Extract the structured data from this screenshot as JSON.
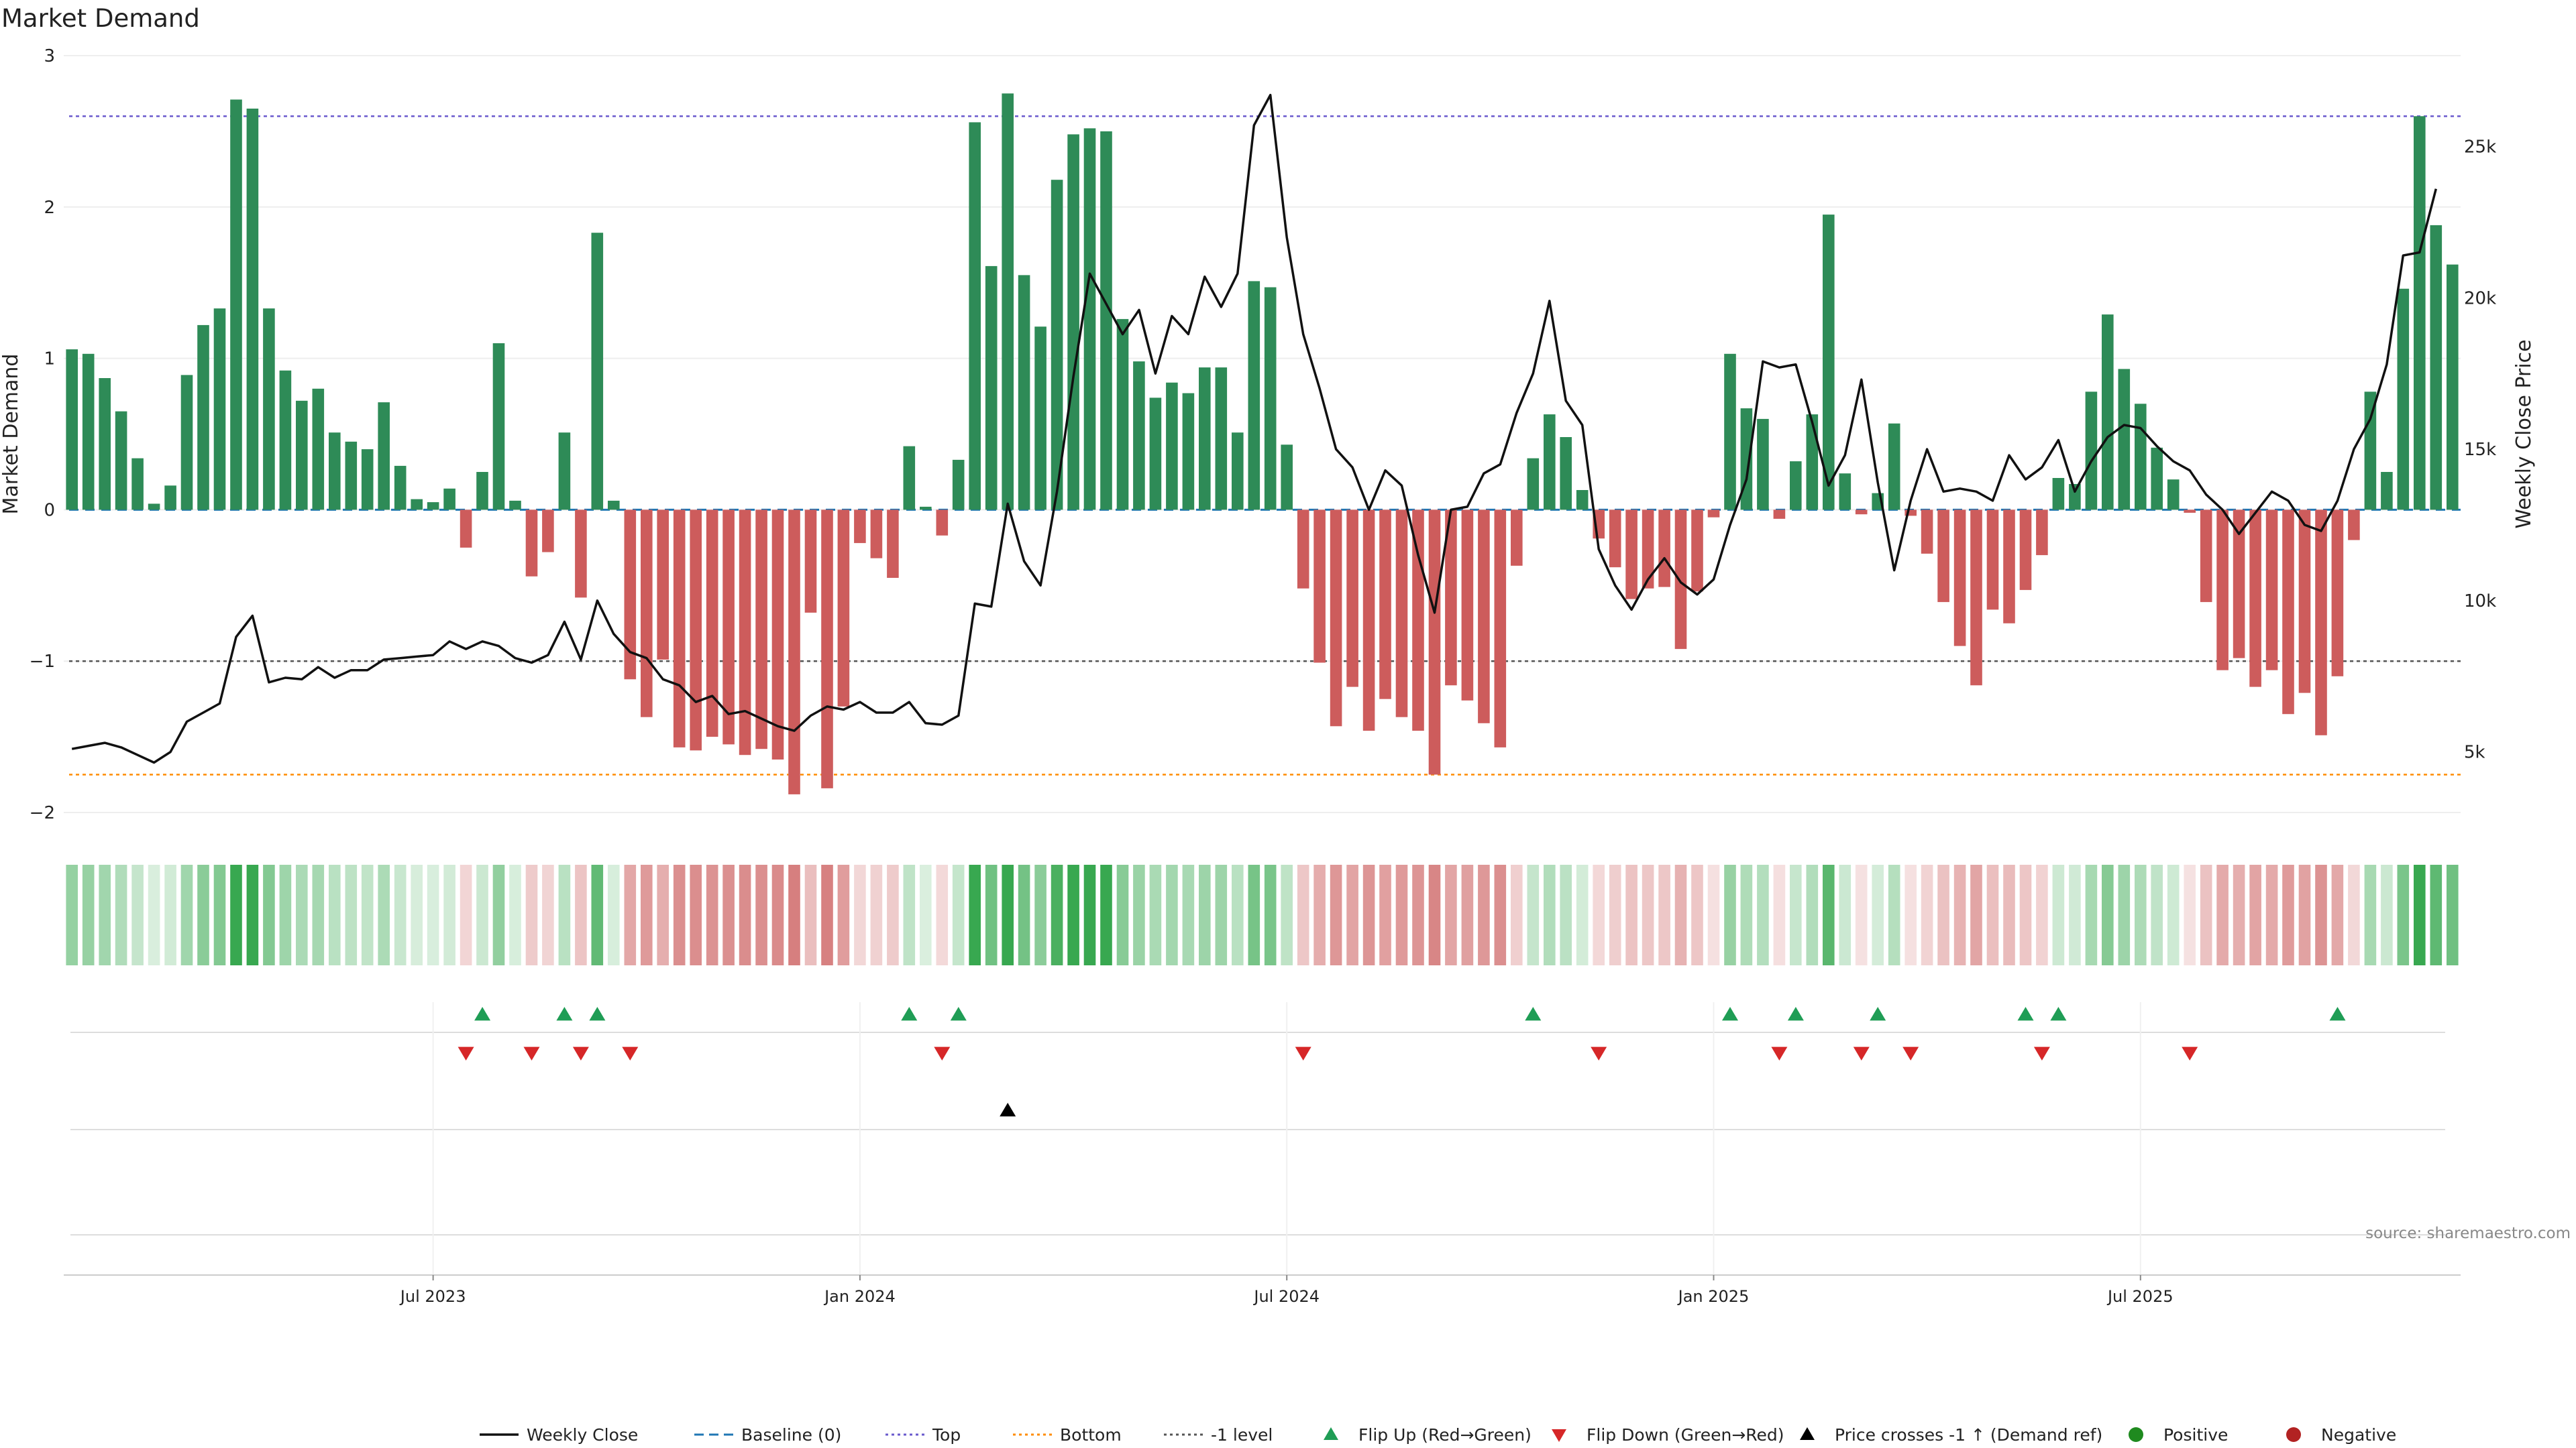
{
  "chart_data": {
    "type": "bar",
    "title": "Market Demand",
    "ylabel_left": "Market Demand",
    "ylabel_right": "Weekly Close Price",
    "ylim_left": [
      -2,
      3
    ],
    "ylim_right": [
      3000,
      28000
    ],
    "yticks_left": [
      {
        "v": -2,
        "label": "−2"
      },
      {
        "v": -1,
        "label": "−1"
      },
      {
        "v": 0,
        "label": "0"
      },
      {
        "v": 1,
        "label": "1"
      },
      {
        "v": 2,
        "label": "2"
      },
      {
        "v": 3,
        "label": "3"
      }
    ],
    "yticks_right": [
      {
        "v": 5000,
        "label": "5k"
      },
      {
        "v": 10000,
        "label": "10k"
      },
      {
        "v": 15000,
        "label": "15k"
      },
      {
        "v": 20000,
        "label": "20k"
      },
      {
        "v": 25000,
        "label": "25k"
      }
    ],
    "x_ticks": [
      {
        "week": 22,
        "label": "Jul 2023"
      },
      {
        "week": 48,
        "label": "Jan 2024"
      },
      {
        "week": 74,
        "label": "Jul 2024"
      },
      {
        "week": 100,
        "label": "Jan 2025"
      },
      {
        "week": 126,
        "label": "Jul 2025"
      }
    ],
    "reference_lines": {
      "top": 2.6,
      "bottom": -1.75,
      "minus_one": -1,
      "baseline": 0
    },
    "demand": [
      1.06,
      1.03,
      0.87,
      0.65,
      0.34,
      0.04,
      0.16,
      0.89,
      1.22,
      1.33,
      2.71,
      2.65,
      1.33,
      0.92,
      0.72,
      0.8,
      0.51,
      0.45,
      0.4,
      0.71,
      0.29,
      0.07,
      0.05,
      0.14,
      -0.25,
      0.25,
      1.1,
      0.06,
      -0.44,
      -0.28,
      0.51,
      -0.58,
      1.83,
      0.06,
      -1.12,
      -1.37,
      -0.99,
      -1.57,
      -1.59,
      -1.5,
      -1.55,
      -1.62,
      -1.58,
      -1.65,
      -1.88,
      -0.68,
      -1.84,
      -1.3,
      -0.22,
      -0.32,
      -0.45,
      0.42,
      0.02,
      -0.17,
      0.33,
      2.56,
      1.61,
      2.75,
      1.55,
      1.21,
      2.18,
      2.48,
      2.52,
      2.5,
      1.26,
      0.98,
      0.74,
      0.84,
      0.77,
      0.94,
      0.94,
      0.51,
      1.51,
      1.47,
      0.43,
      -0.52,
      -1.01,
      -1.43,
      -1.17,
      -1.46,
      -1.25,
      -1.37,
      -1.46,
      -1.75,
      -1.16,
      -1.26,
      -1.41,
      -1.57,
      -0.37,
      0.34,
      0.63,
      0.48,
      0.13,
      -0.19,
      -0.38,
      -0.59,
      -0.52,
      -0.51,
      -0.92,
      -0.54,
      -0.05,
      1.03,
      0.67,
      0.6,
      -0.06,
      0.32,
      0.63,
      1.95,
      0.24,
      -0.03,
      0.11,
      0.57,
      -0.04,
      -0.29,
      -0.61,
      -0.9,
      -1.16,
      -0.66,
      -0.75,
      -0.53,
      -0.3,
      0.21,
      0.17,
      0.78,
      1.29,
      0.93,
      0.7,
      0.41,
      0.2,
      -0.02,
      -0.61,
      -1.06,
      -0.98,
      -1.17,
      -1.06,
      -1.35,
      -1.21,
      -1.49,
      -1.1,
      -0.2,
      0.78,
      0.25,
      1.46,
      2.6,
      1.88,
      1.62
    ],
    "price": [
      5100,
      5200,
      5300,
      5150,
      4900,
      4650,
      5000,
      6000,
      6300,
      6600,
      8800,
      9500,
      7300,
      7450,
      7400,
      7800,
      7450,
      7700,
      7700,
      8050,
      8100,
      8150,
      8200,
      8650,
      8400,
      8650,
      8500,
      8100,
      7950,
      8200,
      9300,
      8050,
      10000,
      8900,
      8300,
      8100,
      7400,
      7200,
      6650,
      6850,
      6250,
      6350,
      6100,
      5850,
      5700,
      6200,
      6500,
      6400,
      6650,
      6300,
      6300,
      6650,
      5950,
      5900,
      6200,
      9900,
      9800,
      13200,
      11300,
      10500,
      13600,
      17400,
      20800,
      19800,
      18800,
      19600,
      17500,
      19400,
      18800,
      20700,
      19700,
      20800,
      25700,
      26700,
      22000,
      18800,
      17000,
      15000,
      14400,
      13000,
      14300,
      13800,
      11500,
      9600,
      13000,
      13100,
      14200,
      14500,
      16200,
      17500,
      19900,
      16600,
      15800,
      11700,
      10500,
      9700,
      10700,
      11400,
      10600,
      10200,
      10700,
      12500,
      14000,
      17900,
      17700,
      17800,
      15900,
      13800,
      14800,
      17300,
      13900,
      11000,
      13300,
      15000,
      13600,
      13700,
      13600,
      13300,
      14800,
      14000,
      14400,
      15300,
      13600,
      14600,
      15400,
      15800,
      15700,
      15100,
      14600,
      14300,
      13500,
      13000,
      12200,
      12900,
      13600,
      13300,
      12500,
      12300,
      13300,
      15000,
      16000,
      17800,
      21400,
      21500,
      23600
    ]
  },
  "flip_up_weeks": [
    25,
    30,
    32,
    51,
    54,
    89,
    101,
    105,
    110,
    119,
    121,
    138
  ],
  "flip_down_weeks": [
    24,
    28,
    31,
    34,
    53,
    75,
    93,
    104,
    109,
    112,
    120,
    129
  ],
  "price_cross_weeks": [
    57
  ],
  "colors": {
    "positive": "#2e8b57",
    "negative": "#cd5c5c",
    "price_line": "#111111",
    "baseline": "#1f77b4",
    "top": "#6a5acd",
    "bottom": "#ff8c00",
    "minus_one": "#555555",
    "flip_up": "#1f9d55",
    "flip_down": "#d62728",
    "legend_positive": "#1f8a1f",
    "legend_negative": "#b22222"
  },
  "source": "source: sharemaestro.com",
  "legend": [
    {
      "label": "Weekly Close",
      "kind": "line"
    },
    {
      "label": "Baseline (0)",
      "kind": "dash"
    },
    {
      "label": "Top",
      "kind": "dot_top"
    },
    {
      "label": "Bottom",
      "kind": "dot_bottom"
    },
    {
      "label": "-1 level",
      "kind": "dot_minus"
    },
    {
      "label": "Flip Up (Red→Green)",
      "kind": "tri_up"
    },
    {
      "label": "Flip Down (Green→Red)",
      "kind": "tri_down"
    },
    {
      "label": "Price crosses -1 ↑ (Demand ref)",
      "kind": "tri_black"
    },
    {
      "label": "Positive",
      "kind": "dot_pos"
    },
    {
      "label": "Negative",
      "kind": "dot_neg"
    }
  ]
}
